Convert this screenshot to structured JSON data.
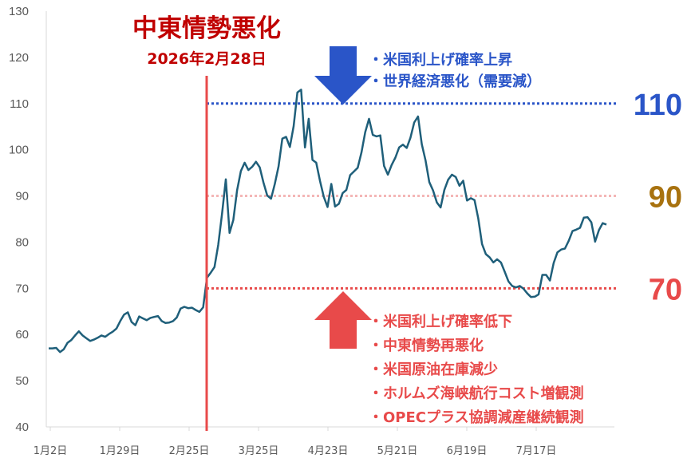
{
  "chart_data": {
    "type": "line",
    "x_tick_labels": [
      "1月2日",
      "1月29日",
      "2月25日",
      "3月25日",
      "4月23日",
      "5月21日",
      "6月19日",
      "7月17日"
    ],
    "y_tick_labels": [
      "40",
      "50",
      "60",
      "70",
      "80",
      "90",
      "100",
      "110",
      "120",
      "130"
    ],
    "ylim": [
      40,
      130
    ],
    "grid": false,
    "series": [
      {
        "color": "#1f5f7a",
        "values": [
          57,
          57,
          57.1,
          56.2,
          56.8,
          58.2,
          58.8,
          59.8,
          60.7,
          59.8,
          59.2,
          58.6,
          58.9,
          59.3,
          59.8,
          59.5,
          60.1,
          60.6,
          61.3,
          62.9,
          64.3,
          64.8,
          62.7,
          62,
          63.9,
          63.5,
          63.1,
          63.6,
          63.8,
          64,
          62.9,
          62.5,
          62.6,
          62.9,
          63.7,
          65.6,
          66,
          65.7,
          65.8,
          65.3,
          64.9,
          65.9,
          72.3,
          73.4,
          74.6,
          79.4,
          86.2,
          93.6,
          82,
          84.8,
          91.2,
          95.4,
          97.2,
          95.6,
          96.3,
          97.4,
          96.2,
          92.9,
          90.1,
          89.4,
          92.6,
          96.4,
          102.4,
          102.8,
          100.6,
          105.1,
          112.4,
          113,
          100.5,
          106.7,
          97.8,
          97.2,
          93.2,
          89.8,
          87.6,
          92.6,
          87.7,
          88.3,
          90.6,
          91.3,
          94.5,
          95.3,
          96.1,
          99.4,
          103.8,
          106.7,
          103.2,
          102.9,
          103.1,
          96.5,
          94.6,
          96.7,
          98.3,
          100.5,
          101.1,
          100.4,
          102.6,
          105.9,
          107.2,
          101.2,
          97.7,
          93,
          91.2,
          88.6,
          87.5,
          91.3,
          93.5,
          94.6,
          94.1,
          92.2,
          93.3,
          89,
          89.5,
          89.1,
          85.1,
          79.6,
          77.4,
          76.7,
          75.6,
          76.3,
          75.6,
          73.6,
          71.5,
          70.5,
          70.2,
          70.5,
          69.9,
          68.9,
          68.1,
          68.2,
          68.7,
          72.9,
          72.9,
          71.7,
          75.5,
          77.8,
          78.4,
          78.6,
          80.3,
          82.4,
          82.7,
          83.1,
          85.3,
          85.4,
          84.3,
          80.1,
          82.6,
          84.1,
          83.8
        ]
      }
    ]
  },
  "event": {
    "title": "中東情勢悪化",
    "date": "2026年2月28日",
    "color": "#e84a4a"
  },
  "levels": [
    {
      "value": 110,
      "label": "110",
      "color": "#2a55c8",
      "style": "dotted"
    },
    {
      "value": 90,
      "label": "90",
      "color": "#a8720f",
      "style": "light"
    },
    {
      "value": 70,
      "label": "70",
      "color": "#e84a4a",
      "style": "dotted"
    }
  ],
  "notes_up": {
    "color": "#2a55c8",
    "items": [
      "・米国利上げ確率上昇",
      "・世界経済悪化（需要減）"
    ]
  },
  "notes_down": {
    "color": "#e84a4a",
    "items": [
      "・米国利上げ確率低下",
      "・中東情勢再悪化",
      "・米国原油在庫減少",
      "・ホルムズ海峡航行コスト増観測",
      "・OPECプラス協調減産継続観測"
    ]
  }
}
